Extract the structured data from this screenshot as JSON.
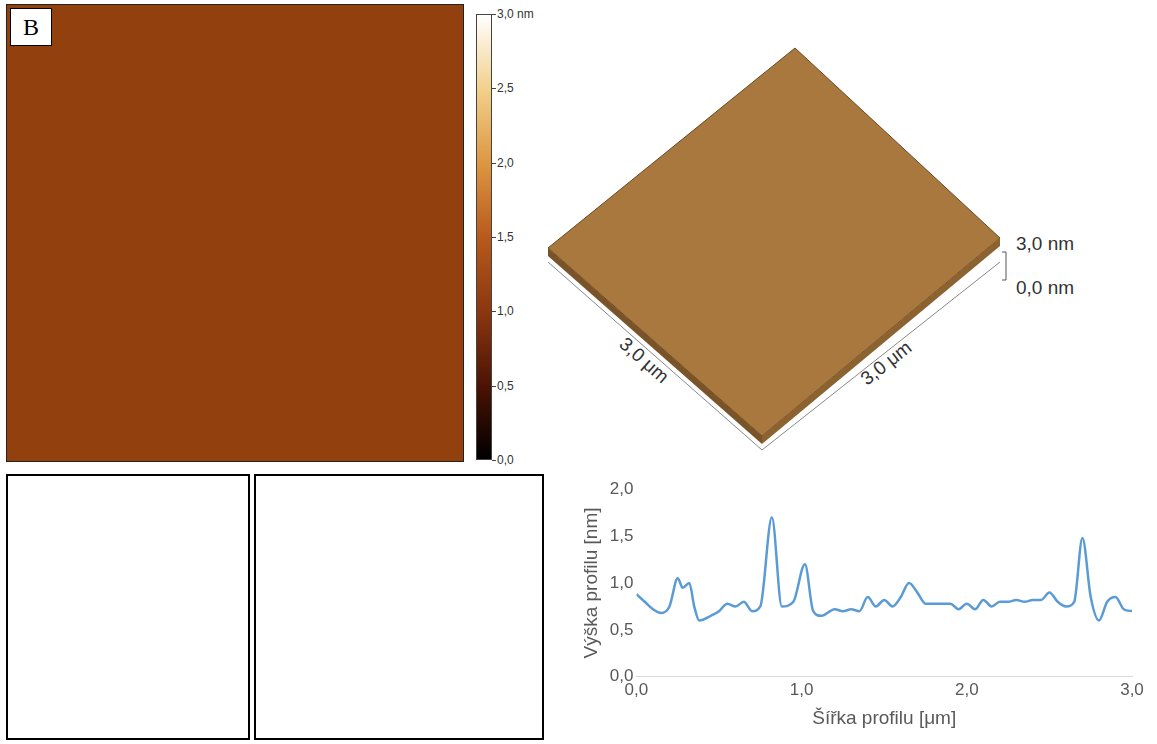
{
  "panel_label": "B",
  "afm_image": {
    "colorbar": {
      "range": [
        0,
        3
      ],
      "ticks": [
        {
          "value": 0,
          "label": "0,0"
        },
        {
          "value": 0.5,
          "label": "0,5"
        },
        {
          "value": 1,
          "label": "1,0"
        },
        {
          "value": 1.5,
          "label": "1,5"
        },
        {
          "value": 2,
          "label": "2,0"
        },
        {
          "value": 2.5,
          "label": "2,5"
        },
        {
          "value": 3,
          "label": "3,0 nm"
        }
      ]
    }
  },
  "surface_3d": {
    "x_label": "3,0 μm",
    "y_label": "3,0 μm",
    "z_ticks": [
      {
        "value": 3,
        "label": "3,0 nm"
      },
      {
        "value": 0,
        "label": "0,0 nm"
      }
    ]
  },
  "chart_data": {
    "type": "line",
    "x_label": "Šířka profilu [μm]",
    "y_label": "Výška profilu [nm]",
    "color": "#5b9bd5",
    "x": [
      0.0,
      0.05,
      0.1,
      0.15,
      0.2,
      0.25,
      0.28,
      0.32,
      0.35,
      0.38,
      0.45,
      0.5,
      0.55,
      0.6,
      0.65,
      0.7,
      0.75,
      0.82,
      0.88,
      0.95,
      1.02,
      1.07,
      1.12,
      1.2,
      1.25,
      1.3,
      1.35,
      1.4,
      1.45,
      1.5,
      1.55,
      1.6,
      1.65,
      1.7,
      1.75,
      1.8,
      1.85,
      1.9,
      1.95,
      2.0,
      2.05,
      2.1,
      2.15,
      2.2,
      2.25,
      2.3,
      2.35,
      2.4,
      2.45,
      2.5,
      2.55,
      2.6,
      2.65,
      2.7,
      2.75,
      2.8,
      2.85,
      2.9,
      2.95,
      3.0
    ],
    "values": [
      0.88,
      0.8,
      0.72,
      0.68,
      0.75,
      1.05,
      0.95,
      1.0,
      0.75,
      0.6,
      0.65,
      0.7,
      0.78,
      0.75,
      0.8,
      0.7,
      0.75,
      1.7,
      0.75,
      0.8,
      1.2,
      0.7,
      0.65,
      0.72,
      0.7,
      0.72,
      0.7,
      0.85,
      0.75,
      0.82,
      0.75,
      0.85,
      1.0,
      0.9,
      0.78,
      0.78,
      0.78,
      0.78,
      0.72,
      0.78,
      0.72,
      0.82,
      0.75,
      0.8,
      0.8,
      0.82,
      0.8,
      0.82,
      0.82,
      0.9,
      0.8,
      0.75,
      0.8,
      1.48,
      0.85,
      0.6,
      0.8,
      0.85,
      0.72,
      0.7
    ],
    "xlim": [
      0,
      3
    ],
    "xticks": [
      {
        "value": 0,
        "label": "0,0"
      },
      {
        "value": 1,
        "label": "1,0"
      },
      {
        "value": 2,
        "label": "2,0"
      },
      {
        "value": 3,
        "label": "3,0"
      }
    ],
    "ylim": [
      0,
      2
    ],
    "yticks": [
      {
        "value": 0,
        "label": "0,0"
      },
      {
        "value": 0.5,
        "label": "0,5"
      },
      {
        "value": 1,
        "label": "1,0"
      },
      {
        "value": 1.5,
        "label": "1,5"
      },
      {
        "value": 2,
        "label": "2,0"
      }
    ],
    "grid": false
  }
}
